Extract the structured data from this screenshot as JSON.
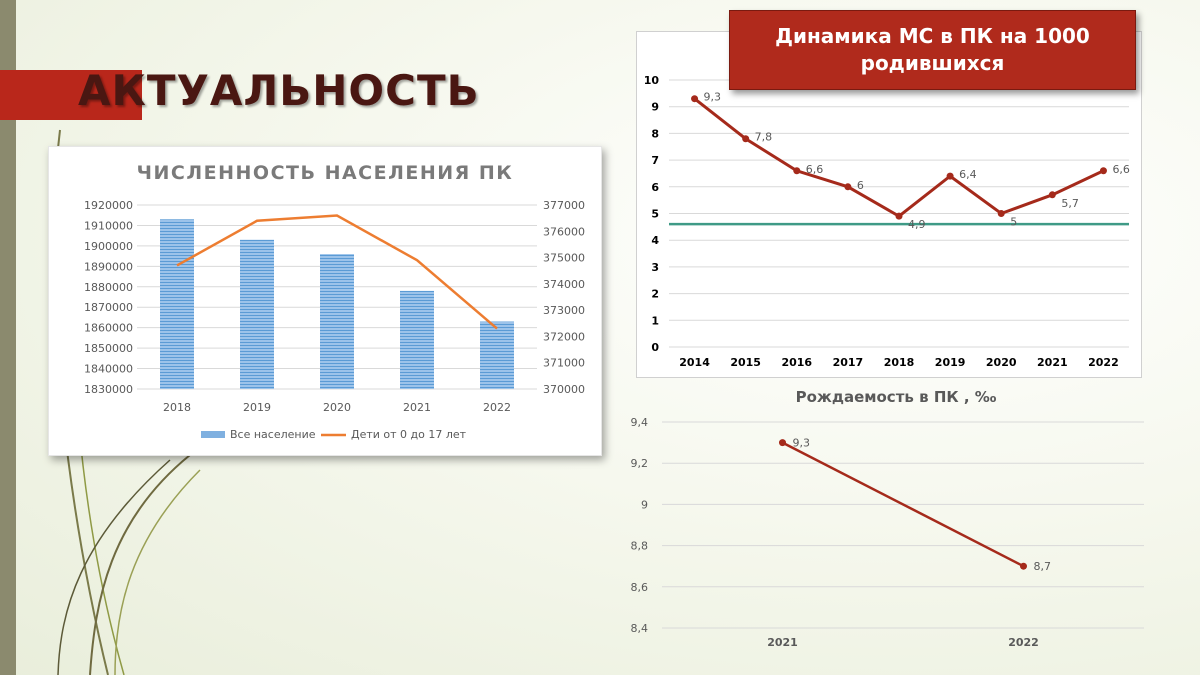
{
  "slide": {
    "title": "АКТУАЛЬНОСТЬ"
  },
  "colors": {
    "accent_red": "#b9271b",
    "title_text": "#4a1712",
    "line_red": "#a52a1b",
    "bar_blue": "#7fb0e0",
    "orange": "#ed7d31",
    "teal": "#3f9a86"
  },
  "chart_data": [
    {
      "type": "bar",
      "title": "ЧИСЛЕННОСТЬ НАСЕЛЕНИЯ ПК",
      "categories": [
        "2018",
        "2019",
        "2020",
        "2021",
        "2022"
      ],
      "series": [
        {
          "name": "Все население",
          "type": "bar",
          "axis": "left",
          "values": [
            1913000,
            1903000,
            1896000,
            1878000,
            1863000
          ]
        },
        {
          "name": "Дети от 0 до 17 лет",
          "type": "line",
          "axis": "right",
          "values": [
            374700,
            376400,
            376600,
            374900,
            372300
          ]
        }
      ],
      "y_left": {
        "range": [
          1830000,
          1920000
        ],
        "ticks": [
          "1830000",
          "1840000",
          "1850000",
          "1860000",
          "1870000",
          "1880000",
          "1890000",
          "1900000",
          "1910000",
          "1920000"
        ]
      },
      "y_right": {
        "range": [
          370000,
          377000
        ],
        "ticks": [
          "370000",
          "371000",
          "372000",
          "373000",
          "374000",
          "375000",
          "376000",
          "377000"
        ]
      },
      "legend_position": "bottom",
      "grid": true
    },
    {
      "type": "line",
      "title": "Динамика МС в ПК на 1000 родившихся",
      "categories": [
        "2014",
        "2015",
        "2016",
        "2017",
        "2018",
        "2019",
        "2020",
        "2021",
        "2022"
      ],
      "series": [
        {
          "values": [
            9.3,
            7.8,
            6.6,
            6,
            4.9,
            6.4,
            5,
            5.7,
            6.6
          ],
          "labels": [
            "9,3",
            "7,8",
            "6,6",
            "6",
            "4,9",
            "6,4",
            "5",
            "5,7",
            "6,6"
          ]
        }
      ],
      "reference_line": 4.6,
      "y_range": [
        0,
        10
      ],
      "y_ticks": [
        "0",
        "1",
        "2",
        "3",
        "4",
        "5",
        "6",
        "7",
        "8",
        "9",
        "10"
      ],
      "grid": true
    },
    {
      "type": "line",
      "title": "Рождаемость в ПК , ‰",
      "categories": [
        "2021",
        "2022"
      ],
      "series": [
        {
          "values": [
            9.3,
            8.7
          ],
          "labels": [
            "9,3",
            "8,7"
          ]
        }
      ],
      "y_range": [
        8.4,
        9.4
      ],
      "y_ticks": [
        "8,4",
        "8,6",
        "8,8",
        "9",
        "9,2",
        "9,4"
      ],
      "grid": true
    }
  ]
}
